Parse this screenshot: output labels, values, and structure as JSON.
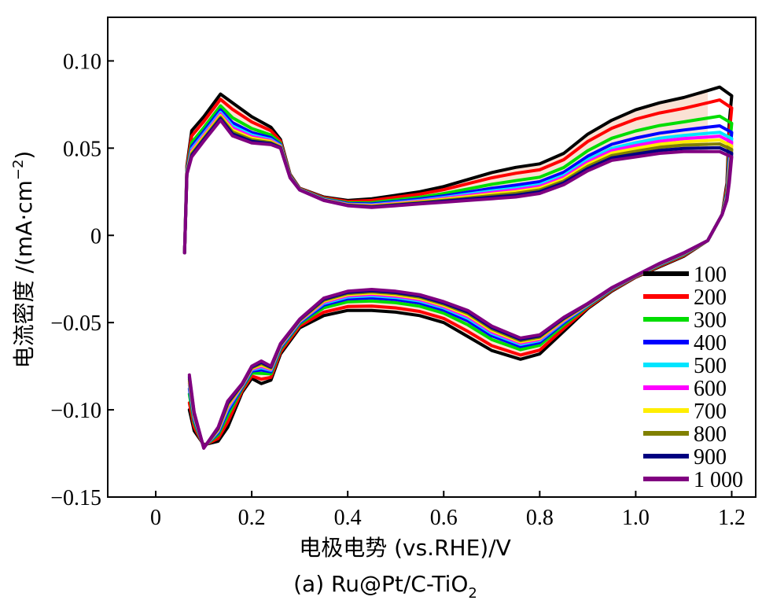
{
  "chart_data": {
    "type": "line",
    "xlabel": "电极电势 (vs.RHE)/V",
    "ylabel_main": "电流密度 /(mA·cm",
    "ylabel_sup": "−2",
    "ylabel_tail": ")",
    "caption_main": "(a) Ru@Pt/C-TiO",
    "caption_sub": "2",
    "xlim": [
      -0.1,
      1.25
    ],
    "ylim": [
      -0.15,
      0.125
    ],
    "x_ticks": [
      0,
      0.2,
      0.4,
      0.6,
      0.8,
      1.0,
      1.2
    ],
    "x_tick_labels": [
      "0",
      "0.2",
      "0.4",
      "0.6",
      "0.8",
      "1.0",
      "1.2"
    ],
    "y_ticks": [
      0.1,
      0.05,
      0,
      -0.05,
      -0.1,
      -0.15
    ],
    "y_tick_labels": [
      "0.10",
      "0.05",
      "0",
      "−0.05",
      "−0.10",
      "−0.15"
    ],
    "grid": false,
    "legend_position": "right",
    "series": [
      {
        "name": "100",
        "color": "#000000",
        "t": 0.0
      },
      {
        "name": "200",
        "color": "#ff0000",
        "t": 0.2
      },
      {
        "name": "300",
        "color": "#00dd00",
        "t": 0.45
      },
      {
        "name": "400",
        "color": "#0000ff",
        "t": 0.6
      },
      {
        "name": "500",
        "color": "#00e5ff",
        "t": 0.7
      },
      {
        "name": "600",
        "color": "#ff00ff",
        "t": 0.76
      },
      {
        "name": "700",
        "color": "#ffee00",
        "t": 0.82
      },
      {
        "name": "800",
        "color": "#808000",
        "t": 0.88
      },
      {
        "name": "900",
        "color": "#000080",
        "t": 0.94
      },
      {
        "name": "1 000",
        "color": "#800080",
        "t": 1.0
      }
    ],
    "anodic_first": [
      [
        0.06,
        -0.01
      ],
      [
        0.065,
        0.04
      ],
      [
        0.075,
        0.06
      ],
      [
        0.1,
        0.068
      ],
      [
        0.135,
        0.081
      ],
      [
        0.16,
        0.076
      ],
      [
        0.2,
        0.068
      ],
      [
        0.24,
        0.062
      ],
      [
        0.26,
        0.055
      ],
      [
        0.28,
        0.035
      ],
      [
        0.3,
        0.027
      ],
      [
        0.35,
        0.022
      ],
      [
        0.4,
        0.02
      ],
      [
        0.45,
        0.021
      ],
      [
        0.5,
        0.023
      ],
      [
        0.55,
        0.025
      ],
      [
        0.6,
        0.028
      ],
      [
        0.65,
        0.032
      ],
      [
        0.7,
        0.036
      ],
      [
        0.75,
        0.039
      ],
      [
        0.8,
        0.041
      ],
      [
        0.85,
        0.047
      ],
      [
        0.9,
        0.058
      ],
      [
        0.95,
        0.066
      ],
      [
        1.0,
        0.072
      ],
      [
        1.05,
        0.076
      ],
      [
        1.1,
        0.079
      ],
      [
        1.15,
        0.083
      ],
      [
        1.175,
        0.085
      ]
    ],
    "anodic_last": [
      [
        0.06,
        -0.01
      ],
      [
        0.065,
        0.035
      ],
      [
        0.075,
        0.045
      ],
      [
        0.1,
        0.054
      ],
      [
        0.135,
        0.066
      ],
      [
        0.16,
        0.057
      ],
      [
        0.2,
        0.053
      ],
      [
        0.24,
        0.052
      ],
      [
        0.26,
        0.05
      ],
      [
        0.28,
        0.033
      ],
      [
        0.3,
        0.026
      ],
      [
        0.35,
        0.02
      ],
      [
        0.4,
        0.017
      ],
      [
        0.45,
        0.016
      ],
      [
        0.5,
        0.017
      ],
      [
        0.55,
        0.018
      ],
      [
        0.6,
        0.019
      ],
      [
        0.65,
        0.02
      ],
      [
        0.7,
        0.021
      ],
      [
        0.75,
        0.022
      ],
      [
        0.8,
        0.024
      ],
      [
        0.85,
        0.029
      ],
      [
        0.9,
        0.037
      ],
      [
        0.95,
        0.043
      ],
      [
        1.0,
        0.045
      ],
      [
        1.05,
        0.047
      ],
      [
        1.1,
        0.048
      ],
      [
        1.15,
        0.048
      ],
      [
        1.175,
        0.048
      ]
    ],
    "cathodic_first": [
      [
        1.2,
        0.08
      ],
      [
        1.195,
        0.065
      ],
      [
        1.19,
        0.03
      ],
      [
        1.18,
        0.012
      ],
      [
        1.15,
        -0.003
      ],
      [
        1.1,
        -0.012
      ],
      [
        1.05,
        -0.018
      ],
      [
        1.0,
        -0.024
      ],
      [
        0.95,
        -0.032
      ],
      [
        0.9,
        -0.042
      ],
      [
        0.85,
        -0.055
      ],
      [
        0.8,
        -0.068
      ],
      [
        0.76,
        -0.071
      ],
      [
        0.7,
        -0.066
      ],
      [
        0.65,
        -0.058
      ],
      [
        0.6,
        -0.05
      ],
      [
        0.55,
        -0.046
      ],
      [
        0.5,
        -0.044
      ],
      [
        0.45,
        -0.043
      ],
      [
        0.4,
        -0.043
      ],
      [
        0.35,
        -0.046
      ],
      [
        0.3,
        -0.053
      ],
      [
        0.26,
        -0.068
      ],
      [
        0.24,
        -0.083
      ],
      [
        0.22,
        -0.085
      ],
      [
        0.2,
        -0.082
      ],
      [
        0.18,
        -0.09
      ],
      [
        0.15,
        -0.11
      ],
      [
        0.13,
        -0.118
      ],
      [
        0.1,
        -0.12
      ],
      [
        0.08,
        -0.112
      ],
      [
        0.07,
        -0.1
      ]
    ],
    "cathodic_last": [
      [
        1.2,
        0.045
      ],
      [
        1.195,
        0.03
      ],
      [
        1.19,
        0.02
      ],
      [
        1.18,
        0.012
      ],
      [
        1.15,
        -0.003
      ],
      [
        1.1,
        -0.01
      ],
      [
        1.05,
        -0.016
      ],
      [
        1.0,
        -0.023
      ],
      [
        0.95,
        -0.03
      ],
      [
        0.9,
        -0.039
      ],
      [
        0.85,
        -0.047
      ],
      [
        0.8,
        -0.057
      ],
      [
        0.77,
        -0.06
      ],
      [
        0.7,
        -0.052
      ],
      [
        0.65,
        -0.043
      ],
      [
        0.6,
        -0.038
      ],
      [
        0.55,
        -0.034
      ],
      [
        0.5,
        -0.032
      ],
      [
        0.45,
        -0.031
      ],
      [
        0.4,
        -0.032
      ],
      [
        0.35,
        -0.036
      ],
      [
        0.3,
        -0.048
      ],
      [
        0.26,
        -0.062
      ],
      [
        0.24,
        -0.075
      ],
      [
        0.22,
        -0.072
      ],
      [
        0.2,
        -0.075
      ],
      [
        0.18,
        -0.085
      ],
      [
        0.15,
        -0.095
      ],
      [
        0.13,
        -0.11
      ],
      [
        0.1,
        -0.122
      ],
      [
        0.085,
        -0.112
      ],
      [
        0.07,
        -0.08
      ]
    ]
  }
}
